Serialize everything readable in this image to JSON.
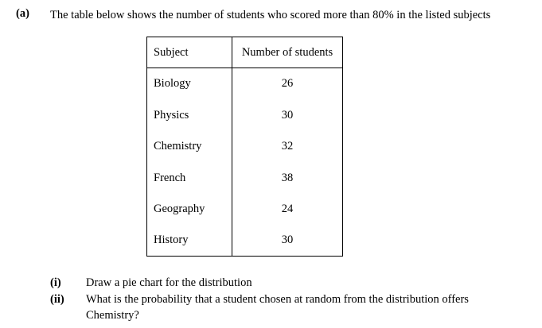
{
  "question": {
    "label": "(a)",
    "intro": "The table below shows the number of students who scored more than 80% in the listed subjects"
  },
  "table": {
    "headers": [
      "Subject",
      "Number of students"
    ],
    "rows": [
      {
        "subject": "Biology",
        "count": "26"
      },
      {
        "subject": "Physics",
        "count": "30"
      },
      {
        "subject": "Chemistry",
        "count": "32"
      },
      {
        "subject": "French",
        "count": "38"
      },
      {
        "subject": "Geography",
        "count": "24"
      },
      {
        "subject": "History",
        "count": "30"
      }
    ]
  },
  "subquestions": [
    {
      "num": "(i)",
      "text": "Draw a pie chart for the distribution"
    },
    {
      "num": "(ii)",
      "text": "What is the probability that a student chosen at random from the distribution offers Chemistry?"
    }
  ]
}
